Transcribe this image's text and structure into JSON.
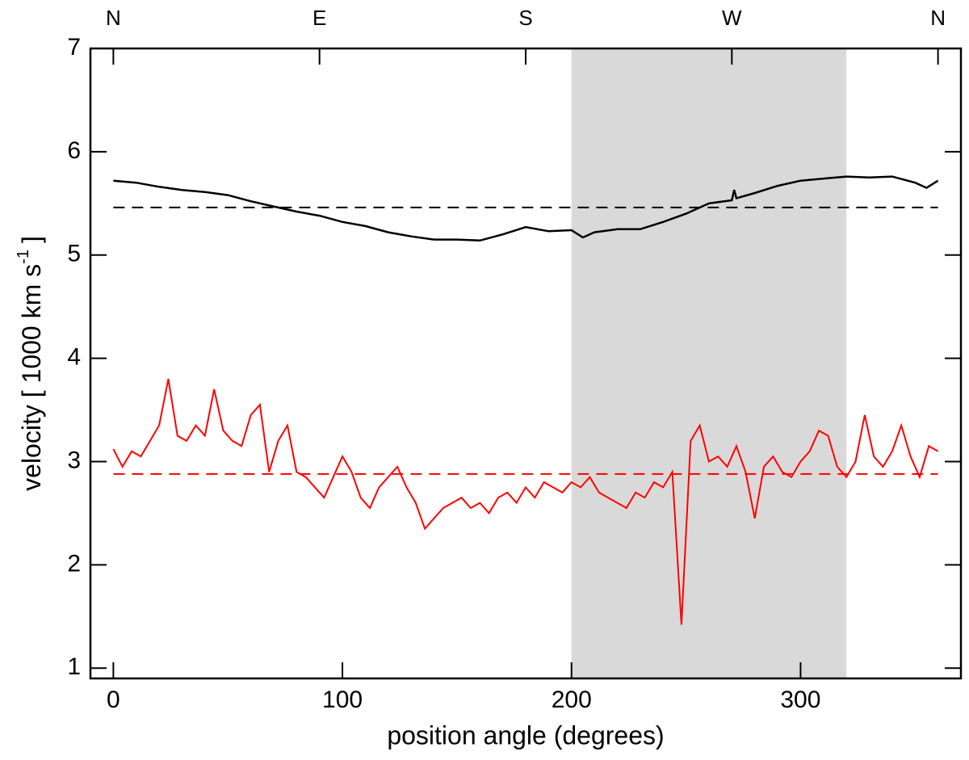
{
  "chart_data": {
    "type": "line",
    "xlabel": "position angle (degrees)",
    "ylabel": {
      "text": "velocity [ 1000 km s",
      "superscript": "-1",
      "end": "]"
    },
    "xlim": [
      -10,
      370
    ],
    "ylim": [
      0.9,
      7
    ],
    "xticks": [
      0,
      100,
      200,
      300
    ],
    "yticks": [
      1,
      2,
      3,
      4,
      5,
      6,
      7
    ],
    "top_ticks": [
      {
        "value": 0,
        "label": "N"
      },
      {
        "value": 90,
        "label": "E"
      },
      {
        "value": 180,
        "label": "S"
      },
      {
        "value": 270,
        "label": "W"
      },
      {
        "value": 360,
        "label": "N"
      }
    ],
    "shaded_region": {
      "x": [
        200,
        320
      ],
      "color": "#d9d9d9"
    },
    "hlines": [
      {
        "value": 5.46,
        "color": "#000000"
      },
      {
        "value": 2.88,
        "color": "#ff0000"
      }
    ],
    "series": [
      {
        "color": "#000000",
        "x": [
          0,
          10,
          20,
          30,
          40,
          50,
          60,
          70,
          80,
          90,
          100,
          110,
          120,
          130,
          140,
          150,
          160,
          170,
          180,
          190,
          200,
          205,
          210,
          220,
          230,
          240,
          250,
          260,
          270,
          271,
          272,
          280,
          290,
          300,
          310,
          320,
          330,
          340,
          350,
          355,
          360
        ],
        "values": [
          5.72,
          5.7,
          5.66,
          5.63,
          5.61,
          5.58,
          5.52,
          5.47,
          5.42,
          5.38,
          5.32,
          5.28,
          5.22,
          5.18,
          5.15,
          5.15,
          5.14,
          5.2,
          5.27,
          5.23,
          5.24,
          5.17,
          5.22,
          5.25,
          5.25,
          5.32,
          5.4,
          5.5,
          5.53,
          5.63,
          5.55,
          5.6,
          5.67,
          5.72,
          5.74,
          5.76,
          5.75,
          5.76,
          5.7,
          5.65,
          5.72
        ]
      },
      {
        "color": "#ff0000",
        "x": [
          0,
          4,
          8,
          12,
          16,
          20,
          24,
          28,
          32,
          36,
          40,
          44,
          48,
          52,
          56,
          60,
          64,
          68,
          72,
          76,
          80,
          84,
          88,
          92,
          96,
          100,
          104,
          108,
          112,
          116,
          120,
          124,
          128,
          132,
          136,
          140,
          144,
          148,
          152,
          156,
          160,
          164,
          168,
          172,
          176,
          180,
          184,
          188,
          192,
          196,
          200,
          204,
          208,
          212,
          216,
          220,
          224,
          228,
          232,
          236,
          240,
          244,
          248,
          252,
          256,
          260,
          264,
          268,
          272,
          276,
          280,
          284,
          288,
          292,
          296,
          300,
          304,
          308,
          312,
          316,
          320,
          324,
          328,
          332,
          336,
          340,
          344,
          348,
          352,
          356,
          360
        ],
        "values": [
          3.12,
          2.95,
          3.1,
          3.05,
          3.2,
          3.35,
          3.8,
          3.25,
          3.2,
          3.35,
          3.25,
          3.7,
          3.3,
          3.2,
          3.15,
          3.45,
          3.55,
          2.9,
          3.2,
          3.35,
          2.9,
          2.85,
          2.75,
          2.65,
          2.85,
          3.05,
          2.9,
          2.65,
          2.55,
          2.75,
          2.85,
          2.95,
          2.75,
          2.6,
          2.35,
          2.45,
          2.55,
          2.6,
          2.65,
          2.55,
          2.6,
          2.5,
          2.65,
          2.7,
          2.6,
          2.75,
          2.65,
          2.8,
          2.75,
          2.7,
          2.8,
          2.75,
          2.85,
          2.7,
          2.65,
          2.6,
          2.55,
          2.7,
          2.65,
          2.8,
          2.75,
          2.9,
          1.42,
          3.2,
          3.35,
          3.0,
          3.05,
          2.95,
          3.15,
          2.9,
          2.45,
          2.95,
          3.05,
          2.9,
          2.85,
          3.0,
          3.1,
          3.3,
          3.25,
          2.95,
          2.85,
          3.0,
          3.45,
          3.05,
          2.95,
          3.1,
          3.35,
          3.05,
          2.85,
          3.15,
          3.1
        ]
      }
    ]
  }
}
